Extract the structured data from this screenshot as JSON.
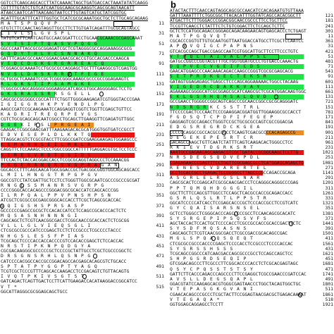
{
  "panels": [
    {
      "label": "",
      "lines": [
        {
          "t": "dna",
          "s": "GGTCCTCAAGCAGCACCTTATCAAAACTAGCTGATGACCACTAAATATATCAAGG",
          "n": "",
          "u": true
        },
        {
          "t": "dna",
          "s": "CGTTTTGTATCTGTCATCAATGGCAAGCGCAAGGTCAGCGCAGTAACATT",
          "n": "",
          "u": true
        },
        {
          "t": "dna",
          "s": "ATAACCAATCCATTAACAAGTAATCCTTGTAGTCATGCTATCGGTGC",
          "n": "",
          "u": true
        },
        {
          "t": "dna",
          "s": "ACATTTGCATTTCATTTGGTGCTCATCGCGCAAATGGCTGCTCTTGCAGCAGAAG",
          "n": "",
          "u": true
        },
        {
          "t": "aa",
          "s": "M A T S P Q Q V P",
          "n": "11"
        },
        {
          "t": "dna",
          "s": "GTGTCTTCCAACTAGTAGGTTGCCTTCTTGTGATCAGATTTGCGCAGTAGCC",
          "n": "",
          "u": true
        },
        {
          "t": "aa",
          "s": "L I V L S L G V S P L",
          "n": "31"
        },
        {
          "t": "dna",
          "s": "TATGTCATTCAATCAGTGCCAACGGATTCCCTGCAACGCAAACGCGAGCAAAT",
          "n": ""
        },
        {
          "t": "aa",
          "s": "S V T S I P T Q A S V P Q G G",
          "n": "51"
        },
        {
          "t": "dna",
          "s": "GGCCCAATTAGCGCGCGGAGATCGCTCGTAGGGCGCCAGGAAAGGCGCG",
          "n": ""
        },
        {
          "t": "aa",
          "s": "G Q D Y T H L V C S N N A K Q",
          "n": "71"
        },
        {
          "t": "dna",
          "s": "GATTTCAGACGCCAACCGGAACGAACGCACCGTGCCACGACCCAAGCA",
          "n": ""
        },
        {
          "t": "aa",
          "s": "V E D C D G K G R G R R E A C Q",
          "n": "91"
        },
        {
          "t": "dna",
          "s": "TCGGAGCGCAAAATCCTGCGCGCCAGGAGCTGCTTTGAAGGCGTCGAGTGG",
          "n": ""
        },
        {
          "t": "aa",
          "s": "N V S L D N S K R R V T F E G E",
          "n": "111"
        },
        {
          "t": "dna",
          "s": "GCTGCGCTCAAAATCCGCTCGGCGGGCAAAGCGCCCGCCGGAGAAGTC",
          "n": ""
        },
        {
          "t": "aa",
          "s": "R L G K S T I P S A M G K E",
          "n": "131"
        },
        {
          "t": "dna",
          "s": "TCGGCGCCAGCAGGGGCGGGAAGGCATCAGCGTGGCAGGGGAGCTCCTG",
          "n": ""
        },
        {
          "t": "aa",
          "s": "G K S R A S S R R S G E L L",
          "n": "151"
        },
        {
          "t": "dna",
          "s": "CAGCGCCGCGGGCCGCCATTTCTGGTTGGGGAAGAGATCGTGGGTACCCGAA",
          "n": ""
        },
        {
          "t": "aa",
          "s": "I G I G G R H K P Y E N D L P G",
          "n": "171"
        },
        {
          "t": "dna",
          "s": "AAGCCGATCCGCAAGAAATCCAGGAGGTCGGTCTGGTTCGAGCTGTTCC",
          "n": ""
        },
        {
          "t": "aa",
          "s": "K A D R I T R E Q R P E V G S",
          "n": "191"
        },
        {
          "t": "dna",
          "s": "CGTCTGCGCAGCAGCAATCGGCCTGCAGCTTGAAGGTTCGAGATGTTGGC",
          "n": ""
        },
        {
          "t": "aa",
          "s": "D G E K I R S L P R G E A I",
          "n": "211"
        },
        {
          "t": "dna",
          "s": "GAAGACTCGGCGAACGATTTAAGAAGACACGCATGGGTGGTGATCCGCCT",
          "n": ""
        },
        {
          "t": "aa",
          "s": "E D V E S E P L D L K K T Q",
          "n": "231"
        },
        {
          "t": "dna",
          "s": "TTAGGCACGTCTCGCGTACCTTCGGCCGATCCGAAGGAAGAGTGGAAGCCC",
          "n": ""
        },
        {
          "t": "aa",
          "s": "K S M A R N S E I L M K L R",
          "n": "251"
        },
        {
          "t": "dna",
          "s": "CAGGTTCTCCAAAGCTCCCTGGCCGGCCATTTTTGAGGACGTGCTCCTCCC",
          "n": ""
        },
        {
          "t": "aa",
          "s": "S E R E S V R D T Q S I D S",
          "n": "271"
        },
        {
          "t": "dna",
          "s": "TTCCACTCTACCACGGACCACCTCCGCGCAGGTAGGCCCTCCAAACGG",
          "n": ""
        },
        {
          "t": "aa",
          "s": "P R G E R A N Q R S V G P R A G A N",
          "n": "291"
        },
        {
          "t": "dna",
          "s": "GGCACCCTTTCAGCAACATGGCGGACCGCTGACGGCGGGTGGCAGCAGCACC",
          "n": ""
        },
        {
          "t": "aa",
          "s": "L M I L H N G G T R P G P G V",
          "n": "311"
        },
        {
          "t": "dna",
          "s": "GGCCGTCCTATCGATTGCTCCTCCTGGGTTGGCGCAATCGCCCGCCCGCGAT",
          "n": ""
        },
        {
          "t": "aa",
          "s": "R N G L S S M A N R S V G R P G",
          "n": "331"
        },
        {
          "t": "dna",
          "s": "CCCCGGGCACCACAGCCCGGGACGGCGCACCATCCAGCACCCGG",
          "n": ""
        },
        {
          "t": "aa",
          "s": "I L R P Q A L P P V P N S H P S N",
          "n": "351"
        },
        {
          "t": "dna",
          "s": "ATCGCTCGCGCCGCGAGCGGGCACCACCTTCGCTCAGCGCACCAC",
          "n": ""
        },
        {
          "t": "aa",
          "s": "S Q I G S H S P R S A S P",
          "n": "371"
        },
        {
          "t": "dna",
          "s": "GCCCCCCGAGCCGCGCTCCACACCATCCTCCAGCCGCACCCACTCTC",
          "n": ""
        },
        {
          "t": "aa",
          "s": "M Q S A S N H N N N G I",
          "n": "391"
        },
        {
          "t": "dna",
          "s": "CAGCAGCTCTCGTCAACGGCGACCTCGGCAACCGCACCACTCTCGCGG",
          "n": ""
        },
        {
          "t": "aa",
          "s": "V L L L G L V I E Q S G L I",
          "n": "411"
        },
        {
          "t": "dna",
          "s": "CTCGCGCCGCCCATCCCGAGCTCCTCTCCGCCCTCGCCCCTACCC",
          "n": ""
        },
        {
          "t": "aa",
          "s": "N H G S L E S S F P I A S",
          "n": "431"
        },
        {
          "t": "dna",
          "s": "TCGCAGCTCCCCACCACCACCCCGTCCACACCGAGCTCTCCACCAC",
          "n": ""
        },
        {
          "t": "aa",
          "s": "N R S T I P K N P Q D G Y A",
          "n": "451"
        },
        {
          "t": "dna",
          "s": "CGCGACAAGGGCGCCCCCGCTCCCCGCTATTGCCTCGCTCGCCCGGCTC",
          "n": ""
        },
        {
          "t": "aa",
          "s": "D R S G N S R H L Q S N P G",
          "n": "471"
        },
        {
          "t": "dna",
          "s": "CATCCCCACGGCCACCGCCGGACAGCCACGAGCACAGCGTCTGCACC",
          "n": ""
        },
        {
          "t": "aa",
          "s": "S P T A T P Y G G P T Y A G Q",
          "n": "491"
        },
        {
          "t": "dna",
          "s": "TCGTCGCTCCCGTTTCAGCACCAAGACCTCCGACAGTCTGTTACAGTG",
          "n": ""
        },
        {
          "t": "aa",
          "s": "I V Q T P K I V S G T S T",
          "n": "511"
        },
        {
          "t": "dna",
          "s": "GATCAGACTCAGTTGACTCCTTCATTGAAGACCACATAAGGACCGGCATCC",
          "n": ""
        },
        {
          "t": "aa",
          "s": "V T *",
          "n": "515",
          "endlabel": "515"
        },
        {
          "t": "dna",
          "s": "GGCATTAGGGCGCGGAGCAGCTGCC",
          "n": ""
        }
      ]
    },
    {
      "label": "b",
      "lines": [
        {
          "t": "dna",
          "s": "ATACTACTTTCAACCAGTAGGCAGCGCCAACATCCACAGAATGTGTTAAA",
          "n": "",
          "u": true
        },
        {
          "t": "dna",
          "s": "GATTTAAATTTTCTGGCGGCTTACACATTTGGTATCAGCCACACGGCTT",
          "n": "121",
          "u": true
        },
        {
          "t": "dna",
          "s": "ATGACTTCTTTGGGACCCGGACGGCAACCGCCCTTCCTGCTTCC",
          "n": "181",
          "u": true
        },
        {
          "t": "dna",
          "s": "TCCGTTCAACCTCTATTTCTCTGTCGGACTTCTCCAGCTCTTC",
          "n": "241",
          "u": true
        },
        {
          "t": "dna",
          "s": "GCTCTCCATGGCAGACCGGGAGCAGACAAGAACAGTGAGCACCCTCTGAGT",
          "n": "301"
        },
        {
          "t": "aa",
          "s": "M A T P G Q V Q T",
          "n": "11"
        },
        {
          "t": "dna",
          "s": "CGCACCCGGTGTTGTGCAATGGTTAATGGACCATGCCTTCGCTCCAATCC",
          "n": "361"
        },
        {
          "t": "aa",
          "s": "A P V V Q I G C P A P N S",
          "n": "31"
        },
        {
          "t": "dna",
          "s": "GTCACGCCAGCTGACCGAGCCAATCGTGGCATTGCTTCCTTCCCTGTC",
          "n": "421"
        },
        {
          "t": "aa",
          "s": "V T P Q L T A I V A L P P S L",
          "n": "51"
        },
        {
          "t": "dna",
          "s": "GATGCCGGCCCGGTACGTTTGCTGGTGGATGCCCTGTGACCCAAACTG",
          "n": "481"
        },
        {
          "t": "aa",
          "s": "D Q P V E C V G E I F C D S",
          "n": "71"
        },
        {
          "t": "dna",
          "s": "GAACATGGAGCCCAACAAACAGACCAAGCCGGGTCGCGCGAGCACG",
          "n": "541"
        },
        {
          "t": "aa",
          "s": "S E T P R D K G E C T E K S R",
          "n": "91"
        },
        {
          "t": "dna",
          "s": "GATAGTGGAGAGAGCTGAGCCTCCCAGCAGGAAAAACTGGCCTACAAG",
          "n": "601"
        },
        {
          "t": "aa",
          "s": "V I G E D R C D A K K V A Y",
          "n": "111"
        },
        {
          "t": "dna",
          "s": "AGAAAAGCGGGGCATCGCGGAGCGCATCAAGCGCTCGCATGGACAAGTGGC",
          "n": "661"
        },
        {
          "t": "aa",
          "s": "E K L G S R H Q M S A L Q V D",
          "n": "131"
        },
        {
          "t": "dna",
          "s": "GCCGAACCTGGGGCCGGCAGTCAGCCCGCAACCGGCCGCGCAGGGATC",
          "n": "721"
        },
        {
          "t": "aa",
          "s": "N D S R G R K C S S T T R L",
          "n": "151"
        },
        {
          "t": "dna",
          "s": "TTCCCCGACTCCCAACTCCCGAAGGACGGATGGTTGGAAGGCGCCACCT",
          "n": "781"
        },
        {
          "t": "aa",
          "s": "F G D S Q T C P D F I F E G E P",
          "n": "171"
        },
        {
          "t": "dna",
          "s": "GAGGAGTCGCCAGACCTGGGTCCGCTGCGCGCCAGTCGCCGGACGA",
          "n": "841"
        },
        {
          "t": "aa",
          "s": "E D G S R E G R D C K G E A",
          "n": "191"
        },
        {
          "t": "dna",
          "s": "CCCCGCAGGCCGCCACGCCCGCCTCAAGTCGACGCCCCACAGAGCCG",
          "n": "901"
        },
        {
          "t": "aa",
          "s": "D E G E K E P E S R T C R",
          "n": "211"
        },
        {
          "t": "dna",
          "s": "GACAGCCAAGCTGTTCAATCTATTTCAGTCAAGACACTGGGCCTCC",
          "n": "961"
        },
        {
          "t": "aa",
          "s": "R K I E V T D G R K S R T",
          "n": "231"
        },
        {
          "t": "dna",
          "s": "AAATGCCGAGAAGAGCAAGACGTCGCTGATACCGCGGCAAGCTCCTTG",
          "n": "1021"
        },
        {
          "t": "aa",
          "s": "N R S D E G S Q D V E P D L",
          "n": "251"
        },
        {
          "t": "dna",
          "s": "CGAGAGAACCCGAGTTTCCTGGTTCGCGAGCGCCTCATGGAGCAGAGCTG",
          "n": "1081"
        },
        {
          "t": "aa",
          "s": "R E N E S C V D A R E R T E L",
          "n": "271"
        },
        {
          "t": "dna",
          "s": "GCCTCCACCGCCTGAGACTCCGGGGCCTTAGCCCGCCAGACCGCAGA",
          "n": "1141"
        },
        {
          "t": "aa",
          "s": "A S G R L E L R G S L N A R",
          "n": "291"
        },
        {
          "t": "dna",
          "s": "CAGCGCACTCCGAGCATCGCGCAACGACCCTCCAGGGCAGGGCCCGAG",
          "n": "1201"
        },
        {
          "t": "aa",
          "s": "P P T Q M Q H D G G G I L",
          "n": "311"
        },
        {
          "t": "dna",
          "s": "GGCTTCTTCCAGCGTTGGCCTCCAGCTCACGCCACCGCAGACCACC",
          "n": "1261"
        },
        {
          "t": "aa",
          "s": "G S R L Q S L R T L P P S T R",
          "n": "331"
        },
        {
          "t": "dna",
          "s": "GGCATCCCCCATCACCTCCGAGCACCCGCTCCCACCGCCTCCGTCATC",
          "n": "1321"
        },
        {
          "t": "aa",
          "s": "G Y C Q A I S A R S N S E L",
          "n": "351"
        },
        {
          "t": "dna",
          "s": "GCTCCTGGGCCTCGGGCACCCAGCCCCCGCCTCCAACAGCGCACATC",
          "n": "1381"
        },
        {
          "t": "aa",
          "s": "S Y S R G E P I P S Q S V F S",
          "n": "371"
        },
        {
          "t": "dna",
          "s": "AGCTACCACTCCACTGCTCCCCACCTCGCCGCCACCGCACCGACTTCTC",
          "n": "1441"
        },
        {
          "t": "aa",
          "s": "S Y S D F M Q S A S N S",
          "n": "391"
        },
        {
          "t": "dna",
          "s": "CAGCAGCTCTCGTCAACGGCGACCTCGCCGACCGCACAGCCGAC",
          "n": "1501"
        },
        {
          "t": "aa",
          "s": "M G L S P Q A Q S Q E Q T",
          "n": "411"
        },
        {
          "t": "dna",
          "s": "CTCGCGCCGCCCACCCCGAGCTCCCCACCTCCGCCCTCCCCACCAC",
          "n": "1561"
        },
        {
          "t": "aa",
          "s": "S Y S R S S H S S S",
          "n": "431"
        },
        {
          "t": "dna",
          "s": "TCGCAGCCGGCCCATCAACGACCAGCGCCCGCCTCCAGCCAGCTCC",
          "n": "1621"
        },
        {
          "t": "aa",
          "s": "S H P G S R D S E Q I P",
          "n": "451"
        },
        {
          "t": "dna",
          "s": "GTCGGACAGCCCTTCGCCCTTCGGCACCCCACCTCTCGCACGAGTAGC",
          "n": "1681"
        },
        {
          "t": "aa",
          "s": "Q S Y C P Q S S T S T S Y",
          "n": "471"
        },
        {
          "t": "dna",
          "s": "GATTCTTCACCCAGACCCAGCCCCTTCCGAGGCTCGCCGAACCCGATCCAC",
          "n": "1741"
        },
        {
          "t": "aa",
          "s": "A V S L L D E G S Q A P L",
          "n": "491"
        },
        {
          "t": "dna",
          "s": "GGACGTATCCAAGAGCACGTGGGCGAGTAACCCTGGCTACAGTGGCTGC",
          "n": "1801"
        },
        {
          "t": "aa",
          "s": "V T E P A S G K G V A N I",
          "n": "511"
        },
        {
          "t": "dna",
          "s": "CGAACACAGCCCGCCCTCGCTACTTCCGGAGTAACGACGCTGAGACAAAAT",
          "n": "1861"
        },
        {
          "t": "aa",
          "s": "V T E G A Q A *",
          "n": "518",
          "endlabel": "518"
        },
        {
          "t": "dna",
          "s": "GGTGGAGCAGGAGCCTCCTT",
          "n": "1921"
        }
      ]
    }
  ],
  "highlights": {
    "panel_a": [
      {
        "line": 7,
        "color": "green",
        "start": 0.64,
        "end": 0.89
      },
      {
        "line": 8,
        "color": "green",
        "start": 0.0,
        "end": 0.89
      },
      {
        "line": 10,
        "color": "green",
        "start": 0.0,
        "end": 0.89
      },
      {
        "line": 12,
        "color": "green",
        "start": 0.0,
        "end": 0.89
      },
      {
        "line": 14,
        "color": "green",
        "start": 0.0,
        "end": 0.89
      },
      {
        "line": 16,
        "color": "green",
        "start": 0.0,
        "end": 0.89
      },
      {
        "line": 18,
        "color": "green",
        "start": 0.0,
        "end": 0.36
      },
      {
        "line": 24,
        "color": "green",
        "start": 0.0,
        "end": 0.14
      },
      {
        "line": 24,
        "color": "orange",
        "start": 0.33,
        "end": 0.62
      },
      {
        "line": 26,
        "color": "red",
        "start": 0.6,
        "end": 0.89
      },
      {
        "line": 28,
        "color": "red",
        "start": 0.0,
        "end": 0.89
      },
      {
        "line": 30,
        "color": "red",
        "start": 0.0,
        "end": 0.89
      },
      {
        "line": 32,
        "color": "red",
        "start": 0.0,
        "end": 0.66
      }
    ],
    "panel_b": [
      {
        "line": 9,
        "color": "green",
        "start": 0.0,
        "end": 0.89
      },
      {
        "line": 11,
        "color": "green",
        "start": 0.0,
        "end": 0.89
      },
      {
        "line": 13,
        "color": "green",
        "start": 0.0,
        "end": 0.89
      },
      {
        "line": 15,
        "color": "green",
        "start": 0.0,
        "end": 0.89
      },
      {
        "line": 17,
        "color": "green",
        "start": 0.0,
        "end": 0.89
      },
      {
        "line": 19,
        "color": "green",
        "start": 0.0,
        "end": 0.26
      },
      {
        "line": 24,
        "color": "orange",
        "start": 0.64,
        "end": 0.89
      },
      {
        "line": 28,
        "color": "red",
        "start": 0.0,
        "end": 0.89
      },
      {
        "line": 30,
        "color": "red",
        "start": 0.0,
        "end": 0.89
      },
      {
        "line": 32,
        "color": "red",
        "start": 0.0,
        "end": 0.62
      }
    ]
  },
  "boxes": {
    "panel_a": [
      {
        "line": 4,
        "start": 0.75,
        "end": 0.87
      },
      {
        "line": 6,
        "start": 0.0,
        "end": 0.2
      },
      {
        "line": 32,
        "start": 0.66,
        "end": 0.78
      }
    ],
    "panel_b": [
      {
        "line": 5,
        "start": 0.77,
        "end": 0.87
      },
      {
        "line": 9,
        "start": 0.1,
        "end": 0.72
      },
      {
        "line": 24,
        "start": 0.0,
        "end": 0.08
      },
      {
        "line": 26,
        "start": 0.0,
        "end": 0.12
      }
    ]
  },
  "circles": {
    "panel_a": [
      {
        "line": 14,
        "at": 0.45
      },
      {
        "line": 18,
        "at": 0.66
      },
      {
        "line": 24,
        "at": 0.24
      },
      {
        "line": 36,
        "at": 0.13
      },
      {
        "line": 40,
        "at": 0.0
      },
      {
        "line": 50,
        "at": 0.62
      },
      {
        "line": 54,
        "at": 0.55
      }
    ],
    "panel_b": [
      {
        "line": 7,
        "at": 0.09
      },
      {
        "line": 17,
        "at": 0.7
      },
      {
        "line": 24,
        "at": 0.35
      },
      {
        "line": 40,
        "at": 0.43
      },
      {
        "line": 42,
        "at": 0.8
      },
      {
        "line": 45,
        "at": 0.28
      },
      {
        "line": 56,
        "at": 0.86
      }
    ]
  }
}
